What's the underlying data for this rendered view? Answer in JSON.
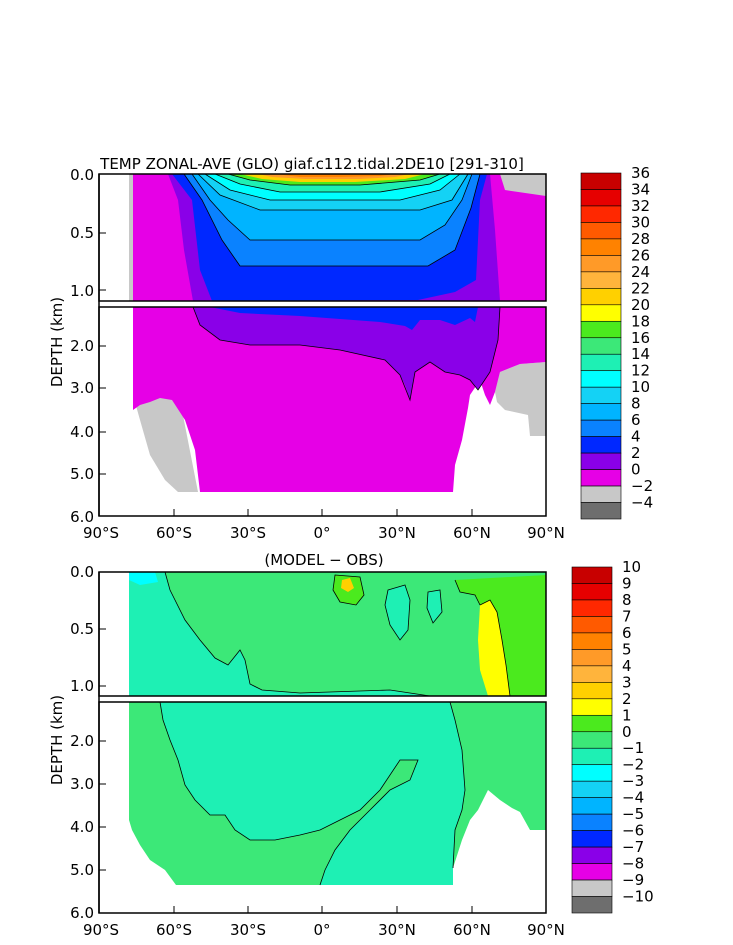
{
  "chart_data": [
    {
      "type": "heatmap",
      "title": "TEMP ZONAL-AVE (GLO) giaf.c112.tidal.2DE10 [291-310]",
      "ylabel": "DEPTH (km)",
      "x_ticks": [
        "90°S",
        "60°S",
        "30°S",
        "0°",
        "30°N",
        "60°N",
        "90°N"
      ],
      "y_ticks_upper": [
        "0.0",
        "0.5",
        "1.0"
      ],
      "y_ticks_lower": [
        "2.0",
        "3.0",
        "4.0",
        "5.0",
        "6.0"
      ],
      "xlim": [
        -90,
        90
      ],
      "ylim_km": [
        0,
        6
      ],
      "depth_break_km": 1.1,
      "colorbar_labels": [
        "36",
        "34",
        "32",
        "30",
        "28",
        "26",
        "24",
        "22",
        "20",
        "18",
        "16",
        "14",
        "12",
        "10",
        "8",
        "6",
        "4",
        "2",
        "0",
        "−2",
        "−4"
      ],
      "colorbar_colors": [
        "#c80000",
        "#e60000",
        "#ff2800",
        "#ff5a00",
        "#ff8200",
        "#ff9a28",
        "#ffb43c",
        "#ffd000",
        "#ffff00",
        "#4bea1e",
        "#3ce878",
        "#1ef0b4",
        "#00ffff",
        "#14d2f5",
        "#00b4ff",
        "#0a82ff",
        "#0028ff",
        "#8a00e8",
        "#e600e6",
        "#c8c8c8",
        "#6e6e6e"
      ]
    },
    {
      "type": "heatmap",
      "title": "(MODEL − OBS)",
      "ylabel": "DEPTH (km)",
      "x_ticks": [
        "90°S",
        "60°S",
        "30°S",
        "0°",
        "30°N",
        "60°N",
        "90°N"
      ],
      "y_ticks_upper": [
        "0.0",
        "0.5",
        "1.0"
      ],
      "y_ticks_lower": [
        "2.0",
        "3.0",
        "4.0",
        "5.0",
        "6.0"
      ],
      "xlim": [
        -90,
        90
      ],
      "ylim_km": [
        0,
        6
      ],
      "depth_break_km": 1.1,
      "colorbar_labels": [
        "10",
        "9",
        "8",
        "7",
        "6",
        "5",
        "4",
        "3",
        "2",
        "1",
        "0",
        "−1",
        "−2",
        "−3",
        "−4",
        "−5",
        "−6",
        "−7",
        "−8",
        "−9",
        "−10"
      ],
      "colorbar_colors": [
        "#c80000",
        "#e60000",
        "#ff2800",
        "#ff5a00",
        "#ff8200",
        "#ff9a28",
        "#ffb43c",
        "#ffd000",
        "#ffff00",
        "#4bea1e",
        "#3ce878",
        "#1ef0b4",
        "#00ffff",
        "#14d2f5",
        "#00b4ff",
        "#0a82ff",
        "#0028ff",
        "#8a00e8",
        "#e600e6",
        "#c8c8c8",
        "#6e6e6e"
      ]
    }
  ]
}
